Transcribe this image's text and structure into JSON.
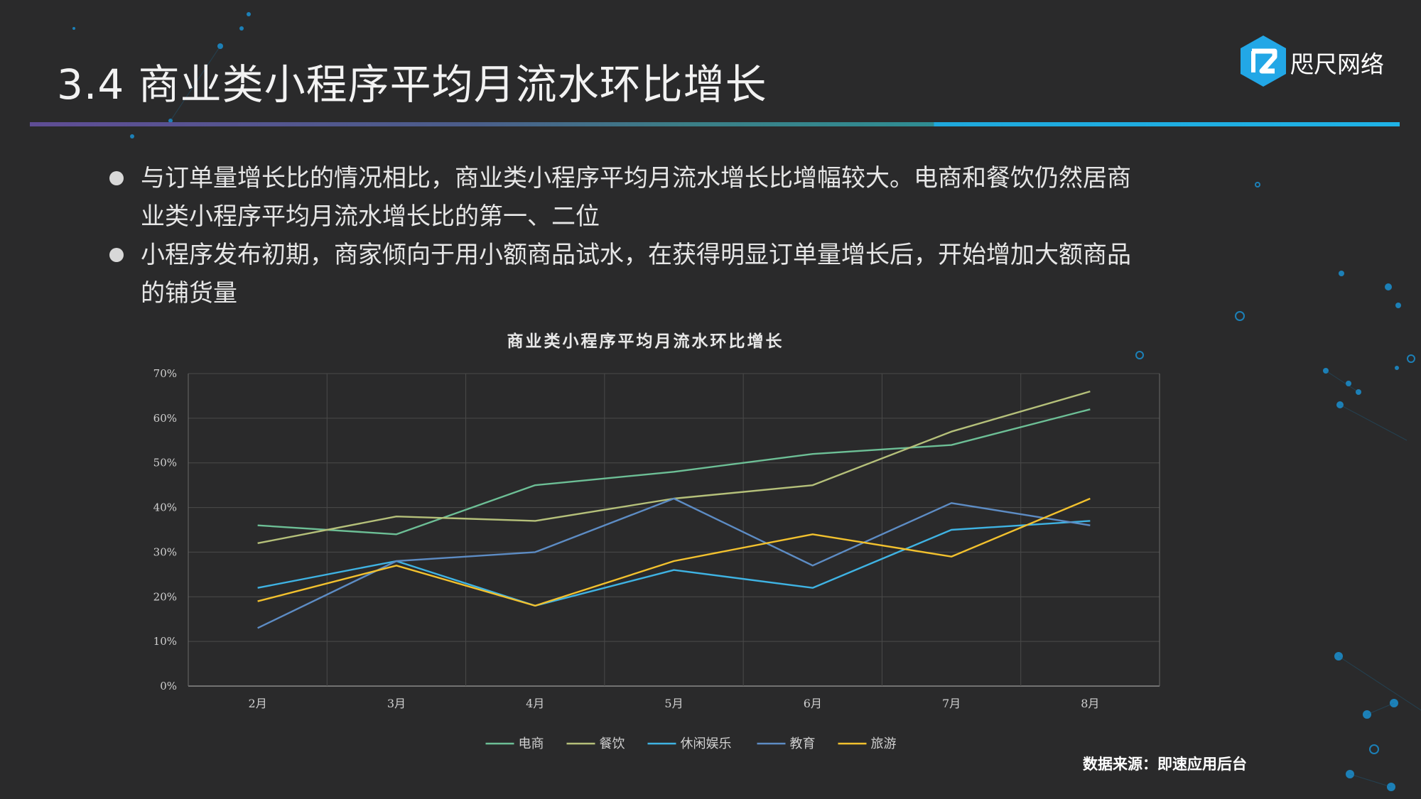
{
  "slide": {
    "title": "3.4 商业类小程序平均月流水环比增长",
    "logo_text": "咫尺网络",
    "bullets": [
      "与订单量增长比的情况相比，商业类小程序平均月流水增长比增幅较大。电商和餐饮仍然居商业类小程序平均月流水增长比的第一、二位",
      "小程序发布初期，商家倾向于用小额商品试水，在获得明显订单量增长后，开始增加大额商品的铺货量"
    ],
    "source": "数据来源：即速应用后台"
  },
  "colors": {
    "background": "#2a2a2b",
    "accent_purple": "#5f4d95",
    "accent_blue": "#1fb2e6"
  },
  "chart_data": {
    "type": "line",
    "title": "商业类小程序平均月流水环比增长",
    "categories": [
      "2月",
      "3月",
      "4月",
      "5月",
      "6月",
      "7月",
      "8月"
    ],
    "y_ticks": [
      "0%",
      "10%",
      "20%",
      "30%",
      "40%",
      "50%",
      "60%",
      "70%"
    ],
    "ylim": [
      0,
      70
    ],
    "y_unit": "%",
    "grid": true,
    "legend_position": "bottom",
    "series": [
      {
        "name": "电商",
        "color": "#6dbf96",
        "values": [
          36,
          34,
          45,
          48,
          52,
          54,
          62
        ]
      },
      {
        "name": "餐饮",
        "color": "#b5c07a",
        "values": [
          32,
          38,
          37,
          42,
          45,
          57,
          66
        ]
      },
      {
        "name": "休闲娱乐",
        "color": "#3fb3e3",
        "values": [
          22,
          28,
          18,
          26,
          22,
          35,
          37
        ]
      },
      {
        "name": "教育",
        "color": "#5d8cc4",
        "values": [
          13,
          28,
          30,
          42,
          27,
          41,
          36
        ]
      },
      {
        "name": "旅游",
        "color": "#f2c12e",
        "values": [
          19,
          27,
          18,
          28,
          34,
          29,
          42
        ]
      }
    ]
  }
}
